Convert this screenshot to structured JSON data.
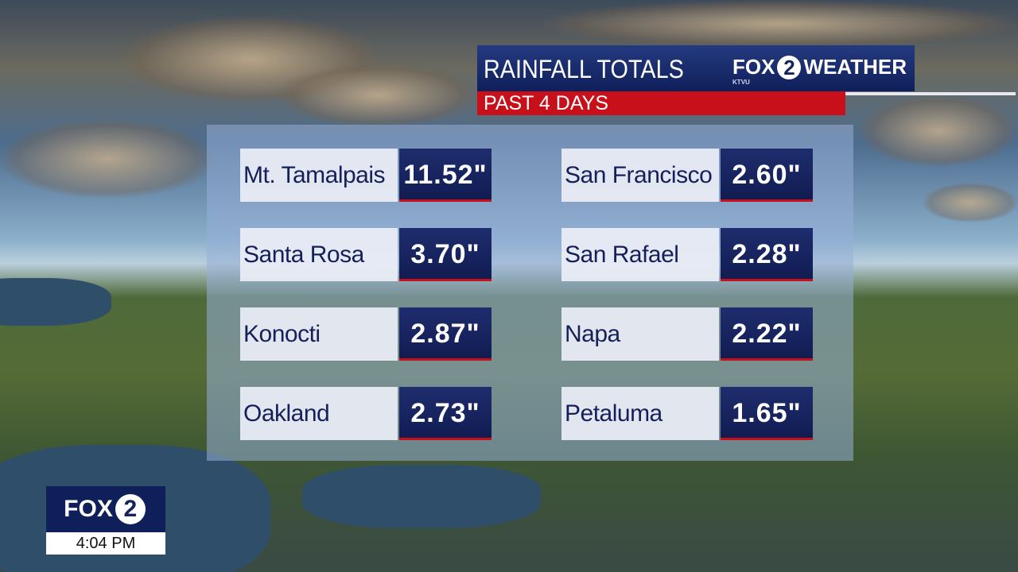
{
  "header": {
    "title": "RAINFALL TOTALS",
    "subtitle": "PAST 4 DAYS",
    "logo": "FOX",
    "logo_number": "2",
    "station": "KTVU",
    "brand": "WEATHER"
  },
  "totals": [
    {
      "location": "Mt. Tamalpais",
      "amount": "11.52\""
    },
    {
      "location": "San Francisco",
      "amount": "2.60\""
    },
    {
      "location": "Santa Rosa",
      "amount": "3.70\""
    },
    {
      "location": "San Rafael",
      "amount": "2.28\""
    },
    {
      "location": "Konocti",
      "amount": "2.87\""
    },
    {
      "location": "Napa",
      "amount": "2.22\""
    },
    {
      "location": "Oakland",
      "amount": "2.73\""
    },
    {
      "location": "Petaluma",
      "amount": "1.65\""
    }
  ],
  "bug": {
    "logo": "FOX",
    "logo_number": "2",
    "time": "4:04 PM"
  }
}
